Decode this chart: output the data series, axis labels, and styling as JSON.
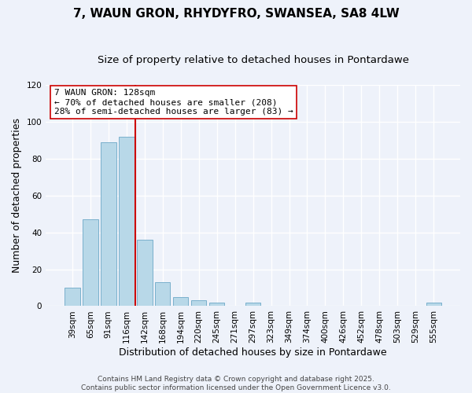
{
  "title": "7, WAUN GRON, RHYDYFRO, SWANSEA, SA8 4LW",
  "subtitle": "Size of property relative to detached houses in Pontardawe",
  "xlabel": "Distribution of detached houses by size in Pontardawe",
  "ylabel": "Number of detached properties",
  "categories": [
    "39sqm",
    "65sqm",
    "91sqm",
    "116sqm",
    "142sqm",
    "168sqm",
    "194sqm",
    "220sqm",
    "245sqm",
    "271sqm",
    "297sqm",
    "323sqm",
    "349sqm",
    "374sqm",
    "400sqm",
    "426sqm",
    "452sqm",
    "478sqm",
    "503sqm",
    "529sqm",
    "555sqm"
  ],
  "values": [
    10,
    47,
    89,
    92,
    36,
    13,
    5,
    3,
    2,
    0,
    2,
    0,
    0,
    0,
    0,
    0,
    0,
    0,
    0,
    0,
    2
  ],
  "bar_color": "#b8d8e8",
  "bar_edge_color": "#7ab0cc",
  "vline_color": "#cc0000",
  "vline_x": 3.5,
  "ylim": [
    0,
    120
  ],
  "yticks": [
    0,
    20,
    40,
    60,
    80,
    100,
    120
  ],
  "annotation_title": "7 WAUN GRON: 128sqm",
  "annotation_line1": "← 70% of detached houses are smaller (208)",
  "annotation_line2": "28% of semi-detached houses are larger (83) →",
  "footer_line1": "Contains HM Land Registry data © Crown copyright and database right 2025.",
  "footer_line2": "Contains public sector information licensed under the Open Government Licence v3.0.",
  "background_color": "#eef2fa",
  "grid_color": "#ffffff",
  "title_fontsize": 11,
  "subtitle_fontsize": 9.5,
  "axis_label_fontsize": 9,
  "tick_fontsize": 7.5,
  "footer_fontsize": 6.5,
  "annotation_fontsize": 8
}
